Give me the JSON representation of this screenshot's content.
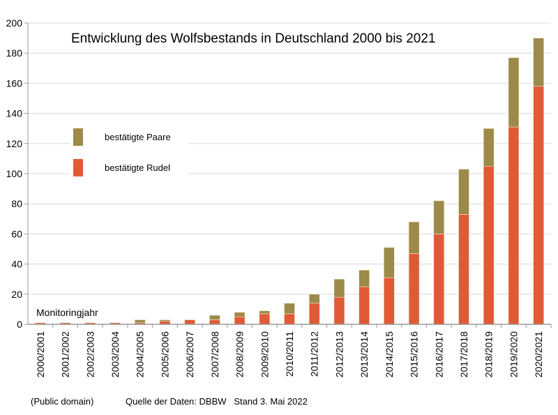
{
  "chart_data": {
    "type": "bar",
    "stacked": true,
    "title": "Entwicklung des Wolfsbestands in Deutschland 2000 bis 2021",
    "xlabel": "Monitoringjahr",
    "ylabel": "",
    "ylim": [
      0,
      200
    ],
    "yticks": [
      0,
      20,
      40,
      60,
      80,
      100,
      120,
      140,
      160,
      180,
      200
    ],
    "grid": true,
    "legend_position": "upper-left",
    "categories": [
      "2000/2001",
      "2001/2002",
      "2002/2003",
      "2003/2004",
      "2004/2005",
      "2005/2006",
      "2006/2007",
      "2007/2008",
      "2008/2009",
      "2009/2010",
      "2010/2011",
      "2011/2012",
      "2012/2013",
      "2013/2014",
      "2014/2015",
      "2015/2016",
      "2016/2017",
      "2017/2018",
      "2018/2019",
      "2019/2020",
      "2020/2021"
    ],
    "series": [
      {
        "name": "bestätigte Rudel",
        "color": "#e05a36",
        "values": [
          1,
          1,
          1,
          1,
          1,
          2,
          3,
          3,
          5,
          7,
          7,
          14,
          18,
          25,
          31,
          47,
          60,
          73,
          105,
          131,
          158
        ]
      },
      {
        "name": "bestätigte Paare",
        "color": "#9c8a4a",
        "values": [
          0,
          0,
          0,
          0,
          2,
          1,
          0,
          3,
          3,
          2,
          7,
          6,
          12,
          11,
          20,
          21,
          22,
          30,
          25,
          46,
          32
        ]
      }
    ]
  },
  "footer": {
    "license": "(Public domain)",
    "source": "Quelle der Daten: DBBW   Stand 3. Mai 2022"
  }
}
